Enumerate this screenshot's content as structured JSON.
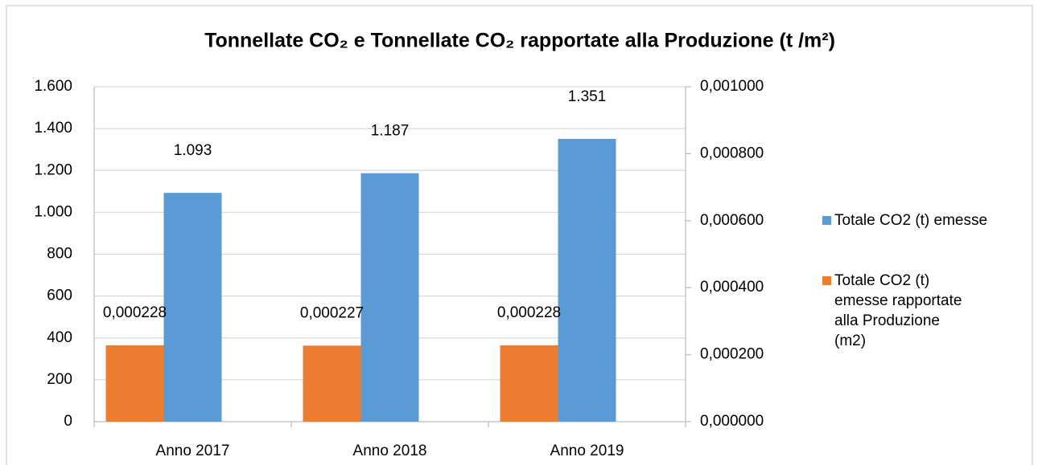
{
  "chart_data": {
    "type": "bar",
    "title": "Tonnellate CO₂ e Tonnellate CO₂ rapportate alla Produzione (t /m²)",
    "categories": [
      "Anno 2017",
      "Anno 2018",
      "Anno 2019"
    ],
    "series": [
      {
        "name": "Totale CO2 (t) emesse",
        "color": "#5b9bd5",
        "values": [
          1093,
          1187,
          1351
        ],
        "value_labels": [
          "1.093",
          "1.187",
          "1.351"
        ]
      },
      {
        "name": "Totale CO2 (t) emesse rapportate alla Produzione (m2)",
        "color": "#ed7d31",
        "axis": "y2",
        "values": [
          0.000228,
          0.000227,
          0.000228
        ],
        "value_labels": [
          "0,000228",
          "0,000227",
          "0,000228"
        ]
      }
    ],
    "ylim": [
      0,
      1600
    ],
    "yticks": [
      0,
      200,
      400,
      600,
      800,
      {
        "value": 1000,
        "label": "1.000"
      },
      {
        "value": 1200,
        "label": "1.200"
      },
      {
        "value": 1400,
        "label": "1.400"
      },
      {
        "value": 1600,
        "label": "1.600"
      }
    ],
    "y2lim": [
      0,
      0.001
    ],
    "y2ticks": [
      {
        "value": 0,
        "label": "0,000000"
      },
      {
        "value": 0.0002,
        "label": "0,000200"
      },
      {
        "value": 0.0004,
        "label": "0,000400"
      },
      {
        "value": 0.0006,
        "label": "0,000600"
      },
      {
        "value": 0.0008,
        "label": "0,000800"
      },
      {
        "value": 0.001,
        "label": "0,001000"
      }
    ],
    "grid": true,
    "legend": "right"
  }
}
